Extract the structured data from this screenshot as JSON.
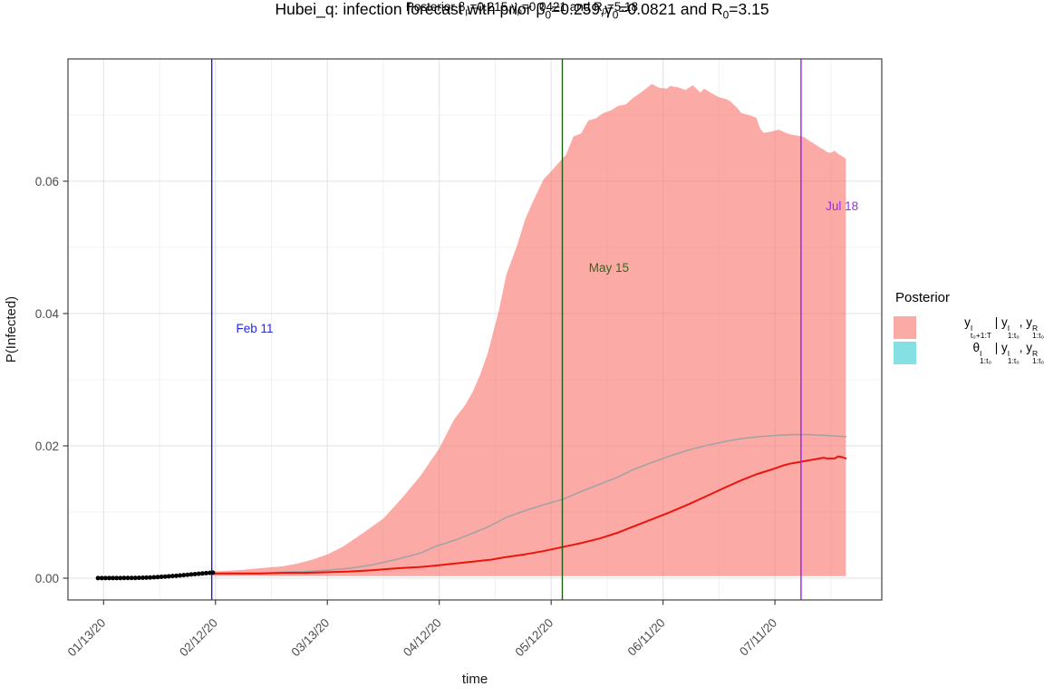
{
  "title": {
    "plain": "Hubei_q: infection forecast with prior B0=0.259, g0=0.0821 and R0=3.15",
    "segments": [
      {
        "t": "Hubei_q: infection forecast with prior β"
      },
      {
        "sub": "0"
      },
      {
        "t": "=0.259,γ"
      },
      {
        "sub": "0"
      },
      {
        "t": "=0.0821 and R"
      },
      {
        "sub": "0"
      },
      {
        "t": "=3.15"
      }
    ]
  },
  "subtitle": {
    "plain": "Posterior Bp=0.215, gp=0.0421 and R0=5.18",
    "segments": [
      {
        "t": "Posterior β"
      },
      {
        "sub": "p"
      },
      {
        "t": "=0.215,γ"
      },
      {
        "sub": "p"
      },
      {
        "t": "=0.0421 and R"
      },
      {
        "sub": "0"
      },
      {
        "t": "=5.18"
      }
    ]
  },
  "chart_data": {
    "type": "area",
    "title": "Hubei_q: infection forecast with prior B0=0.259, g0=0.0821 and R0=3.15",
    "subtitle": "Posterior Bp=0.215, gp=0.0421 and R0=5.18",
    "xlabel": "time",
    "ylabel": "P(Infected)",
    "xlim": [
      -9.55,
      208.65
    ],
    "ylim": [
      -0.00329,
      0.07849
    ],
    "grid": {
      "major_color": "#E4E4E4",
      "minor_color": "#F0F0F0",
      "panel_border": "#424242"
    },
    "x_ticks": [
      {
        "label": "01/13/20",
        "day": 0
      },
      {
        "label": "02/12/20",
        "day": 30
      },
      {
        "label": "03/13/20",
        "day": 60
      },
      {
        "label": "04/12/20",
        "day": 90
      },
      {
        "label": "05/12/20",
        "day": 120
      },
      {
        "label": "06/11/20",
        "day": 150
      },
      {
        "label": "07/11/20",
        "day": 180
      }
    ],
    "y_ticks": [
      {
        "label": "0.00",
        "value": 0.0
      },
      {
        "label": "0.02",
        "value": 0.02
      },
      {
        "label": "0.04",
        "value": 0.04
      },
      {
        "label": "0.06",
        "value": 0.06
      }
    ],
    "ribbon": {
      "name": "forecast credible band",
      "fill_base": "#F8766D",
      "fill_opacity": 0.62,
      "lower_value": 0.0003,
      "upper": [
        [
          29.5,
          0.001
        ],
        [
          33,
          0.0011
        ],
        [
          36,
          0.0012
        ],
        [
          40,
          0.0014
        ],
        [
          44,
          0.0016
        ],
        [
          48,
          0.0018
        ],
        [
          52,
          0.0022
        ],
        [
          56,
          0.0028
        ],
        [
          60,
          0.0036
        ],
        [
          64,
          0.0047
        ],
        [
          69,
          0.0066
        ],
        [
          75,
          0.009
        ],
        [
          80,
          0.0121
        ],
        [
          85,
          0.0155
        ],
        [
          90,
          0.0196
        ],
        [
          94,
          0.024
        ],
        [
          97,
          0.0262
        ],
        [
          99,
          0.0282
        ],
        [
          101,
          0.0308
        ],
        [
          103,
          0.034
        ],
        [
          106,
          0.0405
        ],
        [
          108,
          0.0459
        ],
        [
          111,
          0.0505
        ],
        [
          113,
          0.0542
        ],
        [
          115,
          0.0568
        ],
        [
          118,
          0.0603
        ],
        [
          120,
          0.0615
        ],
        [
          123,
          0.0634
        ],
        [
          124,
          0.064
        ],
        [
          126,
          0.0668
        ],
        [
          128,
          0.0672
        ],
        [
          130,
          0.0692
        ],
        [
          132,
          0.0695
        ],
        [
          134,
          0.0703
        ],
        [
          136,
          0.0707
        ],
        [
          138,
          0.0714
        ],
        [
          140,
          0.0716
        ],
        [
          142,
          0.0726
        ],
        [
          145,
          0.0738
        ],
        [
          147,
          0.0747
        ],
        [
          149,
          0.0741
        ],
        [
          151,
          0.074
        ],
        [
          152,
          0.0744
        ],
        [
          154,
          0.0742
        ],
        [
          156,
          0.0738
        ],
        [
          158,
          0.0745
        ],
        [
          160,
          0.0734
        ],
        [
          161,
          0.074
        ],
        [
          163,
          0.0733
        ],
        [
          165,
          0.0727
        ],
        [
          167,
          0.0724
        ],
        [
          168,
          0.0721
        ],
        [
          170,
          0.071
        ],
        [
          171,
          0.0703
        ],
        [
          173,
          0.07
        ],
        [
          175,
          0.0696
        ],
        [
          176,
          0.068
        ],
        [
          177,
          0.0673
        ],
        [
          179,
          0.0675
        ],
        [
          181,
          0.0678
        ],
        [
          183,
          0.0673
        ],
        [
          184,
          0.0671
        ],
        [
          186,
          0.0669
        ],
        [
          187,
          0.0668
        ],
        [
          188,
          0.0666
        ],
        [
          189,
          0.0662
        ],
        [
          191,
          0.0655
        ],
        [
          192,
          0.0651
        ],
        [
          193,
          0.0648
        ],
        [
          194,
          0.0644
        ],
        [
          195,
          0.0643
        ],
        [
          196,
          0.0646
        ],
        [
          197,
          0.0641
        ],
        [
          198,
          0.0638
        ],
        [
          199,
          0.0634
        ]
      ]
    },
    "series": [
      {
        "name": "posterior mean trajectory",
        "color": "#A3A3A3",
        "width": 1.6,
        "points": [
          [
            29.5,
            0.0008
          ],
          [
            36,
            0.0008
          ],
          [
            42,
            0.0008
          ],
          [
            48,
            0.0009
          ],
          [
            54,
            0.001
          ],
          [
            60,
            0.0012
          ],
          [
            66,
            0.0015
          ],
          [
            72,
            0.002
          ],
          [
            79,
            0.0029
          ],
          [
            85,
            0.0038
          ],
          [
            89,
            0.0048
          ],
          [
            94,
            0.0057
          ],
          [
            99,
            0.0068
          ],
          [
            104,
            0.008
          ],
          [
            108,
            0.0092
          ],
          [
            113,
            0.0102
          ],
          [
            118,
            0.0111
          ],
          [
            123,
            0.0119
          ],
          [
            128,
            0.0131
          ],
          [
            133,
            0.0142
          ],
          [
            138,
            0.0153
          ],
          [
            142,
            0.0164
          ],
          [
            147,
            0.0175
          ],
          [
            152,
            0.0185
          ],
          [
            157,
            0.0194
          ],
          [
            162,
            0.0201
          ],
          [
            167,
            0.0207
          ],
          [
            171,
            0.0211
          ],
          [
            176,
            0.0214
          ],
          [
            181,
            0.0216
          ],
          [
            185,
            0.0217
          ],
          [
            189,
            0.0217
          ],
          [
            193,
            0.0216
          ],
          [
            196,
            0.0215
          ],
          [
            199,
            0.0214
          ]
        ]
      },
      {
        "name": "forecast median",
        "color": "#EB150D",
        "width": 2.0,
        "points": [
          [
            29.5,
            0.0007
          ],
          [
            36,
            0.0007
          ],
          [
            42,
            0.0007
          ],
          [
            48,
            0.0008
          ],
          [
            54,
            0.0008
          ],
          [
            60,
            0.0009
          ],
          [
            66,
            0.001
          ],
          [
            72,
            0.0012
          ],
          [
            79,
            0.0015
          ],
          [
            85,
            0.0017
          ],
          [
            89,
            0.0019
          ],
          [
            94,
            0.0022
          ],
          [
            99,
            0.0025
          ],
          [
            104,
            0.0028
          ],
          [
            108,
            0.0032
          ],
          [
            113,
            0.0036
          ],
          [
            118,
            0.0041
          ],
          [
            123,
            0.0047
          ],
          [
            128,
            0.0053
          ],
          [
            133,
            0.006
          ],
          [
            138,
            0.0069
          ],
          [
            142,
            0.0078
          ],
          [
            147,
            0.0089
          ],
          [
            152,
            0.01
          ],
          [
            157,
            0.0112
          ],
          [
            162,
            0.0125
          ],
          [
            167,
            0.0138
          ],
          [
            171,
            0.0148
          ],
          [
            175,
            0.0157
          ],
          [
            179,
            0.0164
          ],
          [
            182,
            0.017
          ],
          [
            184,
            0.0173
          ],
          [
            186,
            0.0175
          ],
          [
            188,
            0.0177
          ],
          [
            190,
            0.0179
          ],
          [
            191,
            0.018
          ],
          [
            193,
            0.0182
          ],
          [
            194,
            0.0181
          ],
          [
            196,
            0.0181
          ],
          [
            197,
            0.0184
          ],
          [
            198,
            0.0183
          ],
          [
            199,
            0.0181
          ]
        ]
      }
    ],
    "dots": {
      "name": "observed data points",
      "color": "#000000",
      "radius": 2.5,
      "points": [
        [
          -1.5,
          2e-05
        ],
        [
          -0.5,
          2e-05
        ],
        [
          0.5,
          2e-05
        ],
        [
          1.5,
          2e-05
        ],
        [
          2.5,
          2e-05
        ],
        [
          3.5,
          2e-05
        ],
        [
          4.5,
          2e-05
        ],
        [
          5.5,
          3e-05
        ],
        [
          6.5,
          3e-05
        ],
        [
          7.5,
          3e-05
        ],
        [
          8.5,
          4e-05
        ],
        [
          9.5,
          5e-05
        ],
        [
          10.5,
          6e-05
        ],
        [
          11.5,
          8e-05
        ],
        [
          12.5,
          0.0001
        ],
        [
          13.5,
          0.00013
        ],
        [
          14.5,
          0.00016
        ],
        [
          15.5,
          0.0002
        ],
        [
          16.5,
          0.00024
        ],
        [
          17.5,
          0.00028
        ],
        [
          18.5,
          0.00032
        ],
        [
          19.5,
          0.00036
        ],
        [
          20.5,
          0.00041
        ],
        [
          21.5,
          0.00046
        ],
        [
          22.5,
          0.00051
        ],
        [
          23.5,
          0.00056
        ],
        [
          24.5,
          0.00061
        ],
        [
          25.5,
          0.00066
        ],
        [
          26.5,
          0.00071
        ],
        [
          27.5,
          0.00076
        ],
        [
          28.5,
          0.0008
        ],
        [
          29.3,
          0.00083
        ]
      ]
    },
    "vlines": [
      {
        "day": 29,
        "label": "Feb 11",
        "color": "#1A1AF0",
        "label_color": "#2525E8",
        "label_pos": [
          40.5,
          0.0371
        ]
      },
      {
        "day": 123,
        "label": "May 15",
        "color": "#1E5E12",
        "label_color": "#3A641E",
        "label_pos": [
          135.5,
          0.0463
        ]
      },
      {
        "day": 187,
        "label": "Jul 18",
        "color": "#9B1FF0",
        "label_color": "#9D2BEB",
        "label_pos": [
          198.0,
          0.0556
        ]
      }
    ],
    "legend": {
      "title": "Posterior",
      "position": "right",
      "entries": [
        {
          "plain": "y^I_(t0+1:T) | y^I_(1:t0), y^R_(1:t0)",
          "swatch_color": "rgba(248,118,109,0.62)",
          "segments": [
            {
              "t": "y"
            },
            {
              "stack": [
                "I",
                "t₀+1:T"
              ]
            },
            {
              "t": " | y"
            },
            {
              "stack": [
                "I",
                "1:t₀"
              ]
            },
            {
              "t": ", y"
            },
            {
              "stack": [
                "R",
                "1:t₀"
              ]
            }
          ]
        },
        {
          "plain": "θ^I_(1:t0) | y^I_(1:t0), y^R_(1:t0)",
          "swatch_color": "rgba(0,191,196,0.48)",
          "segments": [
            {
              "t": "θ"
            },
            {
              "stack": [
                "I",
                "1:t₀"
              ]
            },
            {
              "t": " | y"
            },
            {
              "stack": [
                "I",
                "1:t₀"
              ]
            },
            {
              "t": ", y"
            },
            {
              "stack": [
                "R",
                "1:t₀"
              ]
            }
          ]
        }
      ]
    },
    "axis_text_color": "#4D4D4D",
    "axis_title_color": "#1A1A1A"
  }
}
